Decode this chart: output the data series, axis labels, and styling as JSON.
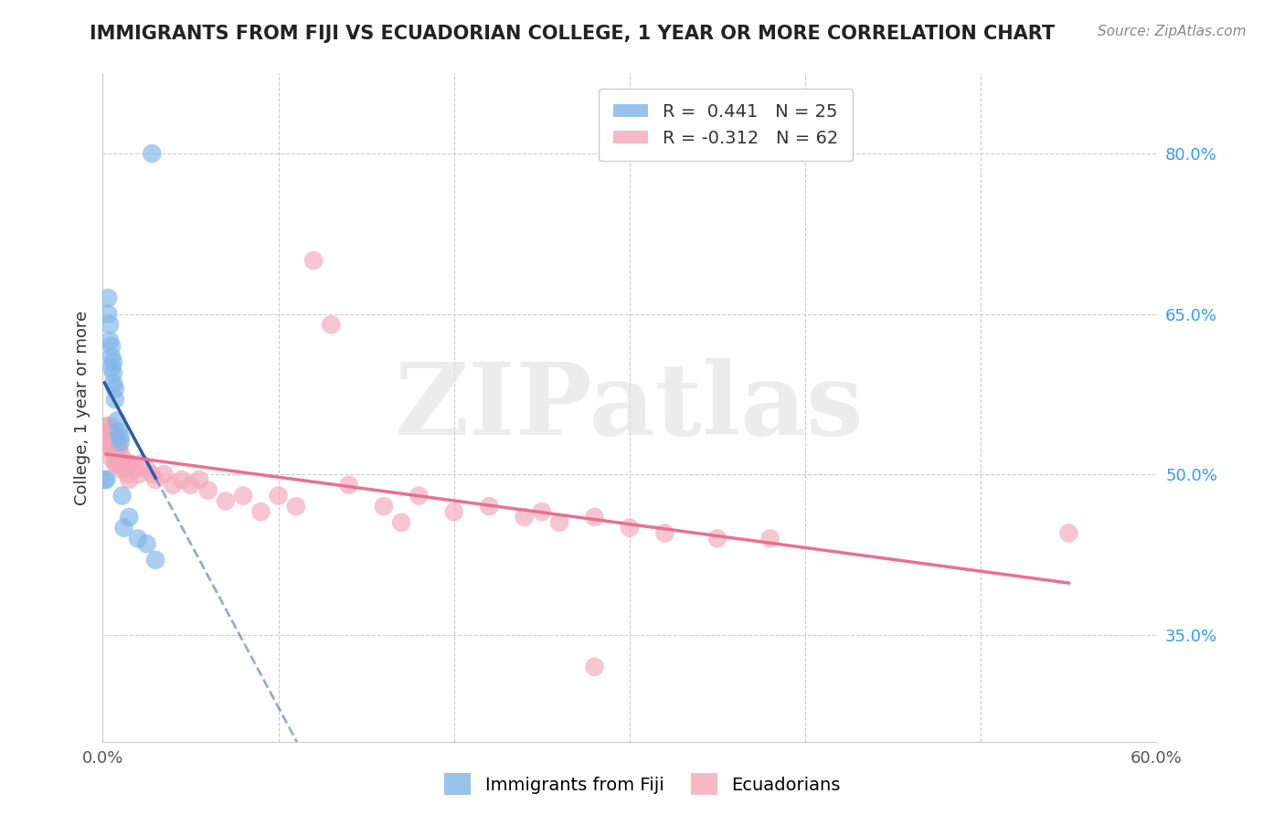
{
  "title": "IMMIGRANTS FROM FIJI VS ECUADORIAN COLLEGE, 1 YEAR OR MORE CORRELATION CHART",
  "source_text": "Source: ZipAtlas.com",
  "ylabel": "College, 1 year or more",
  "xlim": [
    0.0,
    0.6
  ],
  "ylim": [
    0.25,
    0.875
  ],
  "xticks": [
    0.0,
    0.1,
    0.2,
    0.3,
    0.4,
    0.5,
    0.6
  ],
  "xticklabels": [
    "0.0%",
    "",
    "",
    "",
    "",
    "",
    "60.0%"
  ],
  "yticks_right": [
    0.35,
    0.5,
    0.65,
    0.8
  ],
  "ytick_labels_right": [
    "35.0%",
    "50.0%",
    "65.0%",
    "80.0%"
  ],
  "fiji_R": 0.441,
  "fiji_N": 25,
  "ecuador_R": -0.312,
  "ecuador_N": 62,
  "fiji_color": "#7EB6E8",
  "ecuador_color": "#F4A7B9",
  "fiji_line_color": "#2B5BA8",
  "ecuador_line_color": "#E87090",
  "fiji_x": [
    0.001,
    0.002,
    0.003,
    0.003,
    0.004,
    0.004,
    0.005,
    0.005,
    0.005,
    0.006,
    0.006,
    0.006,
    0.007,
    0.007,
    0.008,
    0.009,
    0.01,
    0.01,
    0.011,
    0.012,
    0.015,
    0.02,
    0.025,
    0.028,
    0.03
  ],
  "fiji_y": [
    0.495,
    0.495,
    0.665,
    0.65,
    0.64,
    0.625,
    0.62,
    0.61,
    0.6,
    0.605,
    0.595,
    0.585,
    0.58,
    0.57,
    0.55,
    0.54,
    0.535,
    0.53,
    0.48,
    0.45,
    0.46,
    0.44,
    0.435,
    0.8,
    0.42
  ],
  "ecuador_x": [
    0.002,
    0.002,
    0.003,
    0.003,
    0.004,
    0.004,
    0.005,
    0.005,
    0.005,
    0.006,
    0.006,
    0.007,
    0.007,
    0.007,
    0.008,
    0.008,
    0.009,
    0.009,
    0.01,
    0.01,
    0.011,
    0.012,
    0.013,
    0.014,
    0.015,
    0.015,
    0.016,
    0.018,
    0.02,
    0.022,
    0.025,
    0.028,
    0.03,
    0.035,
    0.04,
    0.045,
    0.05,
    0.055,
    0.06,
    0.07,
    0.08,
    0.09,
    0.1,
    0.11,
    0.12,
    0.13,
    0.14,
    0.16,
    0.17,
    0.18,
    0.2,
    0.22,
    0.24,
    0.25,
    0.26,
    0.28,
    0.3,
    0.32,
    0.35,
    0.38,
    0.55,
    0.28
  ],
  "ecuador_y": [
    0.545,
    0.53,
    0.545,
    0.53,
    0.54,
    0.525,
    0.545,
    0.53,
    0.515,
    0.54,
    0.52,
    0.535,
    0.52,
    0.51,
    0.53,
    0.51,
    0.525,
    0.51,
    0.52,
    0.505,
    0.515,
    0.51,
    0.505,
    0.5,
    0.51,
    0.495,
    0.51,
    0.505,
    0.5,
    0.51,
    0.505,
    0.5,
    0.495,
    0.5,
    0.49,
    0.495,
    0.49,
    0.495,
    0.485,
    0.475,
    0.48,
    0.465,
    0.48,
    0.47,
    0.7,
    0.64,
    0.49,
    0.47,
    0.455,
    0.48,
    0.465,
    0.47,
    0.46,
    0.465,
    0.455,
    0.46,
    0.45,
    0.445,
    0.44,
    0.44,
    0.445,
    0.32
  ],
  "legend_fiji_label": "Immigrants from Fiji",
  "legend_ecuador_label": "Ecuadorians",
  "watermark_text": "ZIPatlas",
  "background_color": "#FFFFFF",
  "grid_color": "#CCCCCC",
  "title_fontsize": 15,
  "axis_label_fontsize": 13,
  "tick_fontsize": 13,
  "legend_fontsize": 14
}
